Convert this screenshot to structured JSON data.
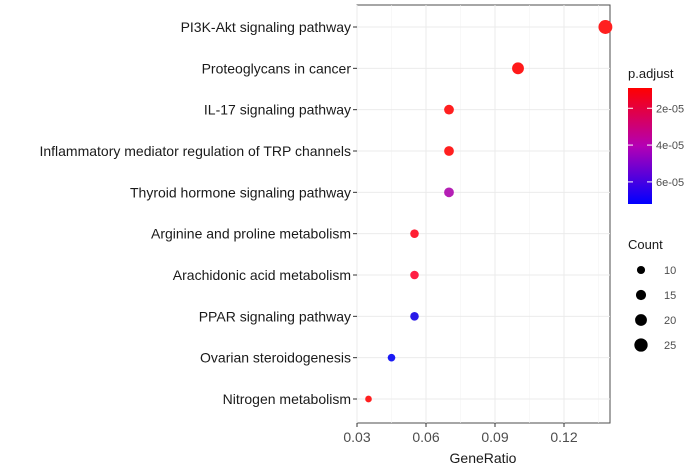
{
  "chart_data": {
    "type": "scatter",
    "title": "",
    "xlabel": "GeneRatio",
    "ylabel": "",
    "xlim": [
      0.03,
      0.14
    ],
    "x_ticks": [
      0.03,
      0.06,
      0.09,
      0.12
    ],
    "x_tick_labels": [
      "0.03",
      "0.06",
      "0.09",
      "0.12"
    ],
    "grid": true,
    "categories": [
      "PI3K-Akt signaling pathway",
      "Proteoglycans in cancer",
      "IL-17 signaling pathway",
      "Inflammatory mediator regulation of TRP channels",
      "Thyroid hormone signaling pathway",
      "Arginine and proline metabolism",
      "Arachidonic acid metabolism",
      "PPAR signaling pathway",
      "Ovarian steroidogenesis",
      "Nitrogen metabolism"
    ],
    "points": [
      {
        "term": "PI3K-Akt signaling pathway",
        "gene_ratio": 0.138,
        "count": 27,
        "p_adjust": 1.2e-05,
        "color": "#FF1F1F"
      },
      {
        "term": "Proteoglycans in cancer",
        "gene_ratio": 0.1,
        "count": 20,
        "p_adjust": 1.1e-05,
        "color": "#FF1A1A"
      },
      {
        "term": "IL-17 signaling pathway",
        "gene_ratio": 0.07,
        "count": 14,
        "p_adjust": 1.2e-05,
        "color": "#FF1F1F"
      },
      {
        "term": "Inflammatory mediator regulation of TRP channels",
        "gene_ratio": 0.07,
        "count": 14,
        "p_adjust": 1.2e-05,
        "color": "#FF1F1F"
      },
      {
        "term": "Thyroid hormone signaling pathway",
        "gene_ratio": 0.07,
        "count": 14,
        "p_adjust": 4.5e-05,
        "color": "#B41FB4"
      },
      {
        "term": "Arginine and proline metabolism",
        "gene_ratio": 0.055,
        "count": 11,
        "p_adjust": 1.4e-05,
        "color": "#FF1F33"
      },
      {
        "term": "Arachidonic acid metabolism",
        "gene_ratio": 0.055,
        "count": 11,
        "p_adjust": 1.8e-05,
        "color": "#FF1F45"
      },
      {
        "term": "PPAR signaling pathway",
        "gene_ratio": 0.055,
        "count": 11,
        "p_adjust": 6.5e-05,
        "color": "#2A1AE8"
      },
      {
        "term": "Ovarian steroidogenesis",
        "gene_ratio": 0.045,
        "count": 9,
        "p_adjust": 7e-05,
        "color": "#1A1AF5"
      },
      {
        "term": "Nitrogen metabolism",
        "gene_ratio": 0.035,
        "count": 7,
        "p_adjust": 1.2e-05,
        "color": "#FF1F1F"
      }
    ],
    "color_legend": {
      "title": "p.adjust",
      "labels": [
        "2e-05",
        "4e-05",
        "6e-05"
      ],
      "values": [
        2e-05,
        4e-05,
        6e-05
      ],
      "range": [
        9e-06,
        7.2e-05
      ],
      "low_color": "#FF0000",
      "mid_color": "#B400B4",
      "high_color": "#0000FF"
    },
    "size_legend": {
      "title": "Count",
      "values": [
        10,
        15,
        20,
        25
      ],
      "labels": [
        "10",
        "15",
        "20",
        "25"
      ]
    }
  }
}
